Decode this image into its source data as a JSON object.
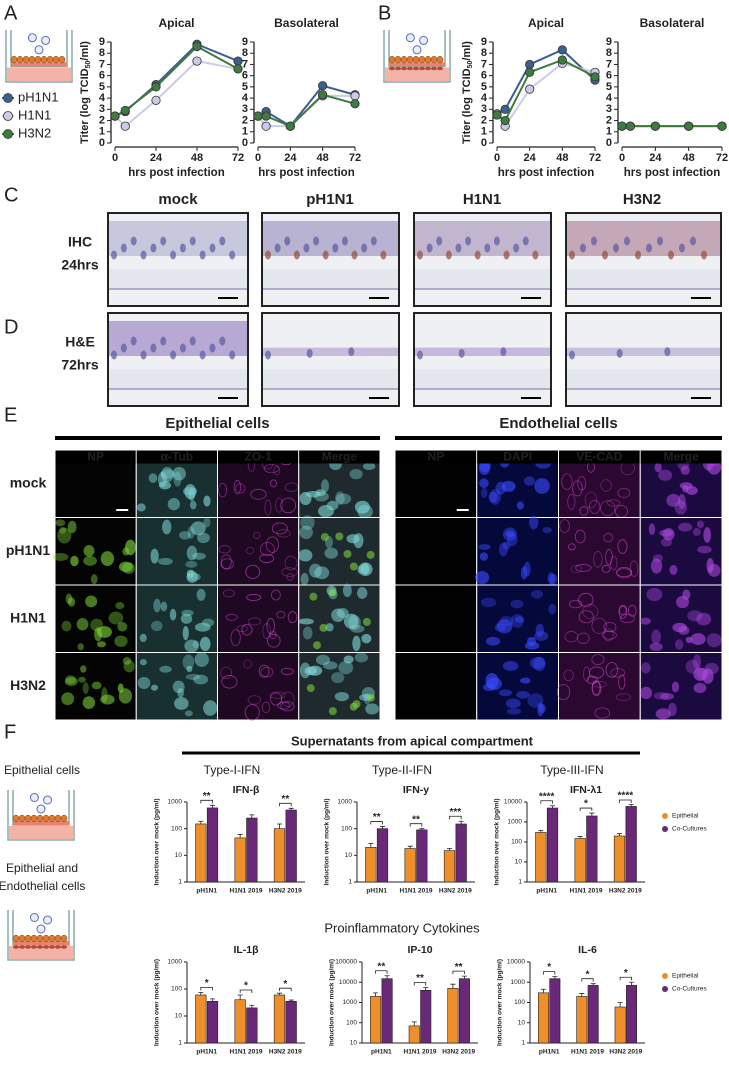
{
  "panel_labels": [
    "A",
    "B",
    "C",
    "D",
    "E",
    "F"
  ],
  "chart_data": [
    {
      "type": "line",
      "title": "Apical",
      "y_label": "Titer (log TCID",
      "y_label_sub": "50",
      "y_label_end": "/ml)",
      "x_label": "hrs post infection",
      "x": [
        0,
        6,
        24,
        48,
        72
      ],
      "xlim": [
        0,
        72
      ],
      "xticks": [
        0,
        24,
        48,
        72
      ],
      "ylim": [
        0,
        9
      ],
      "yticks": [
        0,
        1,
        2,
        3,
        4,
        5,
        6,
        7,
        8,
        9
      ],
      "legend": "left",
      "series": [
        {
          "name": "pH1N1",
          "color": "#3d5f8f",
          "values": [
            2.4,
            2.8,
            5.2,
            8.8,
            7.3
          ]
        },
        {
          "name": "H1N1",
          "color": "#c9cbe8",
          "values": [
            2.4,
            1.5,
            3.8,
            7.3,
            6.6
          ]
        },
        {
          "name": "H3N2",
          "color": "#3f7a3f",
          "values": [
            2.4,
            2.9,
            5.0,
            8.6,
            6.6
          ]
        }
      ]
    },
    {
      "type": "line",
      "title": "Basolateral",
      "x_label": "hrs post infection",
      "x": [
        0,
        6,
        24,
        48,
        72
      ],
      "xlim": [
        0,
        72
      ],
      "xticks": [
        0,
        24,
        48,
        72
      ],
      "ylim": [
        0,
        9
      ],
      "yticks": [
        0,
        1,
        2,
        3,
        4,
        5,
        6,
        7,
        8,
        9
      ],
      "series": [
        {
          "color": "#3d5f8f",
          "values": [
            2.4,
            2.8,
            1.5,
            5.1,
            4.3
          ]
        },
        {
          "color": "#c9cbe8",
          "values": [
            2.4,
            1.5,
            1.5,
            4.2,
            4.2
          ]
        },
        {
          "color": "#3f7a3f",
          "values": [
            2.4,
            2.4,
            1.5,
            4.3,
            3.5
          ]
        }
      ]
    },
    {
      "type": "line",
      "title": "Apical",
      "y_label": "Titer (log TCID",
      "y_label_sub": "50",
      "y_label_end": "/ml)",
      "x_label": "hrs post infection",
      "x": [
        0,
        6,
        24,
        48,
        72
      ],
      "xlim": [
        0,
        72
      ],
      "xticks": [
        0,
        24,
        48,
        72
      ],
      "ylim": [
        0,
        9
      ],
      "yticks": [
        0,
        1,
        2,
        3,
        4,
        5,
        6,
        7,
        8,
        9
      ],
      "series": [
        {
          "color": "#3d5f8f",
          "values": [
            2.6,
            3.0,
            7.0,
            8.3,
            5.6
          ]
        },
        {
          "color": "#c9cbe8",
          "values": [
            2.6,
            1.5,
            4.8,
            7.1,
            6.3
          ]
        },
        {
          "color": "#3f7a3f",
          "values": [
            2.5,
            2.0,
            6.3,
            7.4,
            5.9
          ]
        }
      ]
    },
    {
      "type": "line",
      "title": "Basolateral",
      "x_label": "hrs post infection",
      "x": [
        0,
        6,
        24,
        48,
        72
      ],
      "xlim": [
        0,
        72
      ],
      "xticks": [
        0,
        24,
        48,
        72
      ],
      "ylim": [
        0,
        9
      ],
      "yticks": [
        0,
        1,
        2,
        3,
        4,
        5,
        6,
        7,
        8,
        9
      ],
      "series": [
        {
          "color": "#3d5f8f",
          "values": [
            1.5,
            1.5,
            1.5,
            1.5,
            1.5
          ]
        },
        {
          "color": "#c9cbe8",
          "values": [
            1.5,
            1.5,
            1.5,
            1.5,
            1.5
          ]
        },
        {
          "color": "#3f7a3f",
          "values": [
            1.5,
            1.5,
            1.5,
            1.5,
            1.5
          ]
        }
      ]
    },
    {
      "type": "bar",
      "title": "IFN-β",
      "y_label": "Induction over mock (pg/ml)",
      "log_scale": true,
      "categories": [
        "pH1N1",
        "H1N1 2019",
        "H3N2 2019"
      ],
      "ylim": [
        1,
        1000
      ],
      "yticks": [
        1,
        10,
        100,
        1000
      ],
      "series": [
        {
          "name": "Epithelial",
          "color": "#ee8f2b",
          "values": [
            150,
            45,
            100
          ],
          "errors": [
            40,
            15,
            50
          ]
        },
        {
          "name": "Co-Cultures",
          "color": "#6a2878",
          "values": [
            600,
            250,
            500
          ],
          "errors": [
            150,
            80,
            80
          ]
        }
      ],
      "significance": [
        "**",
        null,
        "**"
      ]
    },
    {
      "type": "bar",
      "title": "IFN-y",
      "y_label": "Induction over mock (pg/ml)",
      "log_scale": true,
      "categories": [
        "pH1N1",
        "H1N1 2019",
        "H3N2 2019"
      ],
      "ylim": [
        1,
        1000
      ],
      "yticks": [
        1,
        10,
        100,
        1000
      ],
      "series": [
        {
          "name": "Epithelial",
          "color": "#ee8f2b",
          "values": [
            20,
            18,
            15
          ],
          "errors": [
            8,
            4,
            3
          ]
        },
        {
          "name": "Co-Cultures",
          "color": "#6a2878",
          "values": [
            100,
            90,
            150
          ],
          "errors": [
            20,
            10,
            40
          ]
        }
      ],
      "significance": [
        "**",
        "**",
        "***"
      ]
    },
    {
      "type": "bar",
      "title": "IFN-λ1",
      "y_label": "Induction over mock (pg/ml)",
      "log_scale": true,
      "legend": "right",
      "categories": [
        "pH1N1",
        "H1N1 2019",
        "H3N2 2019"
      ],
      "ylim": [
        1,
        10000
      ],
      "yticks": [
        1,
        10,
        100,
        1000,
        10000
      ],
      "series": [
        {
          "name": "Epithelial",
          "color": "#ee8f2b",
          "values": [
            300,
            150,
            200
          ],
          "errors": [
            80,
            40,
            60
          ]
        },
        {
          "name": "Co-Cultures",
          "color": "#6a2878",
          "values": [
            5000,
            2000,
            6000
          ],
          "errors": [
            1500,
            800,
            1500
          ]
        }
      ],
      "significance": [
        "****",
        "*",
        "****"
      ]
    },
    {
      "type": "bar",
      "title": "IL-1β",
      "y_label": "Induction over mock (pg/ml)",
      "log_scale": true,
      "categories": [
        "pH1N1",
        "H1N1 2019",
        "H3N2 2019"
      ],
      "ylim": [
        1,
        1000
      ],
      "yticks": [
        1,
        10,
        100,
        1000
      ],
      "series": [
        {
          "name": "Epithelial",
          "color": "#ee8f2b",
          "values": [
            60,
            40,
            60
          ],
          "errors": [
            15,
            20,
            10
          ]
        },
        {
          "name": "Co-Cultures",
          "color": "#6a2878",
          "values": [
            35,
            20,
            35
          ],
          "errors": [
            8,
            5,
            4
          ]
        }
      ],
      "significance": [
        "*",
        "*",
        "*"
      ]
    },
    {
      "type": "bar",
      "title": "IP-10",
      "y_label": "Induction over mock (pg/ml)",
      "log_scale": true,
      "categories": [
        "pH1N1",
        "H1N1 2019",
        "H3N2 2019"
      ],
      "ylim": [
        10,
        100000
      ],
      "yticks": [
        10,
        100,
        1000,
        10000,
        100000
      ],
      "series": [
        {
          "name": "Epithelial",
          "color": "#ee8f2b",
          "values": [
            2000,
            70,
            5000
          ],
          "errors": [
            1000,
            40,
            3000
          ]
        },
        {
          "name": "Co-Cultures",
          "color": "#6a2878",
          "values": [
            15000,
            4000,
            15000
          ],
          "errors": [
            6000,
            1500,
            5000
          ]
        }
      ],
      "significance": [
        "**",
        "**",
        "**"
      ]
    },
    {
      "type": "bar",
      "title": "IL-6",
      "y_label": "Induction over mock (pg/ml)",
      "log_scale": true,
      "legend": "right",
      "categories": [
        "pH1N1",
        "H1N1 2019",
        "H3N2 2019"
      ],
      "ylim": [
        1,
        10000
      ],
      "yticks": [
        1,
        10,
        100,
        1000,
        10000
      ],
      "series": [
        {
          "name": "Epithelial",
          "color": "#ee8f2b",
          "values": [
            300,
            200,
            60
          ],
          "errors": [
            150,
            80,
            40
          ]
        },
        {
          "name": "Co-Cultures",
          "color": "#6a2878",
          "values": [
            1500,
            700,
            700
          ],
          "errors": [
            400,
            150,
            300
          ]
        }
      ],
      "significance": [
        "*",
        "*",
        "*"
      ]
    }
  ],
  "histology": {
    "columns": [
      "mock",
      "pH1N1",
      "H1N1",
      "H3N2"
    ],
    "rows": [
      [
        "IHC",
        "24hrs"
      ],
      [
        "H&E",
        "72hrs"
      ]
    ]
  },
  "immunofluorescence": {
    "groups": [
      {
        "title": "Epithelial cells",
        "channels": [
          "NP",
          "α-Tub",
          "ZO-1",
          "Merge"
        ]
      },
      {
        "title": "Endothelial cells",
        "channels": [
          "NP",
          "DAPI",
          "VE-CAD",
          "Merge"
        ]
      }
    ],
    "rows": [
      "mock",
      "pH1N1",
      "H1N1",
      "H3N2"
    ]
  },
  "panel_f": {
    "header": "Supernatants from apical compartment",
    "groups": [
      "Type-I-IFN",
      "Type-II-IFN",
      "Type-III-IFN"
    ],
    "section2": "Proinflammatory Cytokines",
    "conditions": [
      [
        "Epithelial cells"
      ],
      [
        "Epithelial and",
        "Endothelial cells"
      ]
    ]
  }
}
